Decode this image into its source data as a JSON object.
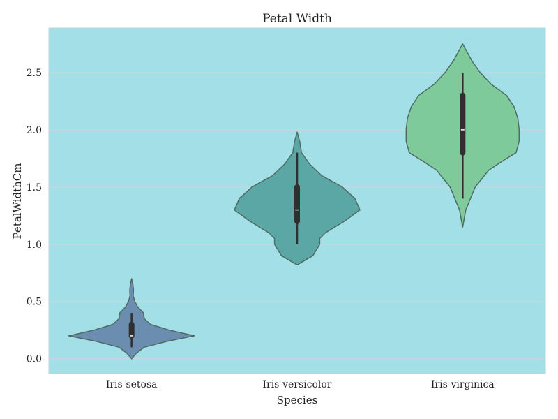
{
  "chart_data": {
    "type": "violin",
    "title": "Petal Width",
    "xlabel": "Species",
    "ylabel": "PetalWidthCm",
    "ylim": [
      -0.13,
      2.89
    ],
    "yticks": [
      "0.0",
      "0.5",
      "1.0",
      "1.5",
      "2.0",
      "2.5"
    ],
    "grid": true,
    "legend": "none",
    "colors": {
      "background": "#A2DFE6",
      "grid": "#C6D9DE",
      "violin_edge": "#4F6B63",
      "box": "#2F2F2F",
      "median": "#FFFFFF"
    },
    "series": [
      {
        "category": "Iris-setosa",
        "color": "#6A8DB0",
        "min": 0.1,
        "q1": 0.2,
        "median": 0.2,
        "q3": 0.3,
        "max": 0.4,
        "density": [
          [
            0.0,
            0.0
          ],
          [
            0.05,
            0.08
          ],
          [
            0.1,
            0.2
          ],
          [
            0.15,
            0.55
          ],
          [
            0.2,
            1.0
          ],
          [
            0.25,
            0.6
          ],
          [
            0.3,
            0.3
          ],
          [
            0.35,
            0.2
          ],
          [
            0.4,
            0.19
          ],
          [
            0.45,
            0.1
          ],
          [
            0.5,
            0.05
          ],
          [
            0.55,
            0.025
          ],
          [
            0.6,
            0.03
          ],
          [
            0.65,
            0.02
          ],
          [
            0.7,
            0.0
          ]
        ]
      },
      {
        "category": "Iris-versicolor",
        "color": "#5BA7A6",
        "min": 1.0,
        "q1": 1.2,
        "median": 1.3,
        "q3": 1.5,
        "max": 1.8,
        "density": [
          [
            0.82,
            0.0
          ],
          [
            0.9,
            0.25
          ],
          [
            1.0,
            0.36
          ],
          [
            1.05,
            0.36
          ],
          [
            1.1,
            0.45
          ],
          [
            1.2,
            0.75
          ],
          [
            1.3,
            1.0
          ],
          [
            1.4,
            0.92
          ],
          [
            1.5,
            0.72
          ],
          [
            1.6,
            0.39
          ],
          [
            1.7,
            0.2
          ],
          [
            1.8,
            0.07
          ],
          [
            1.9,
            0.04
          ],
          [
            1.98,
            0.0
          ]
        ]
      },
      {
        "category": "Iris-virginica",
        "color": "#7FCA9B",
        "min": 1.4,
        "q1": 1.8,
        "median": 2.0,
        "q3": 2.3,
        "max": 2.5,
        "density": [
          [
            1.15,
            0.0
          ],
          [
            1.3,
            0.05
          ],
          [
            1.5,
            0.2
          ],
          [
            1.65,
            0.42
          ],
          [
            1.75,
            0.7
          ],
          [
            1.8,
            0.85
          ],
          [
            1.9,
            0.9
          ],
          [
            2.0,
            0.9
          ],
          [
            2.1,
            0.88
          ],
          [
            2.2,
            0.82
          ],
          [
            2.3,
            0.7
          ],
          [
            2.4,
            0.45
          ],
          [
            2.5,
            0.28
          ],
          [
            2.6,
            0.15
          ],
          [
            2.7,
            0.05
          ],
          [
            2.75,
            0.0
          ]
        ]
      }
    ]
  }
}
